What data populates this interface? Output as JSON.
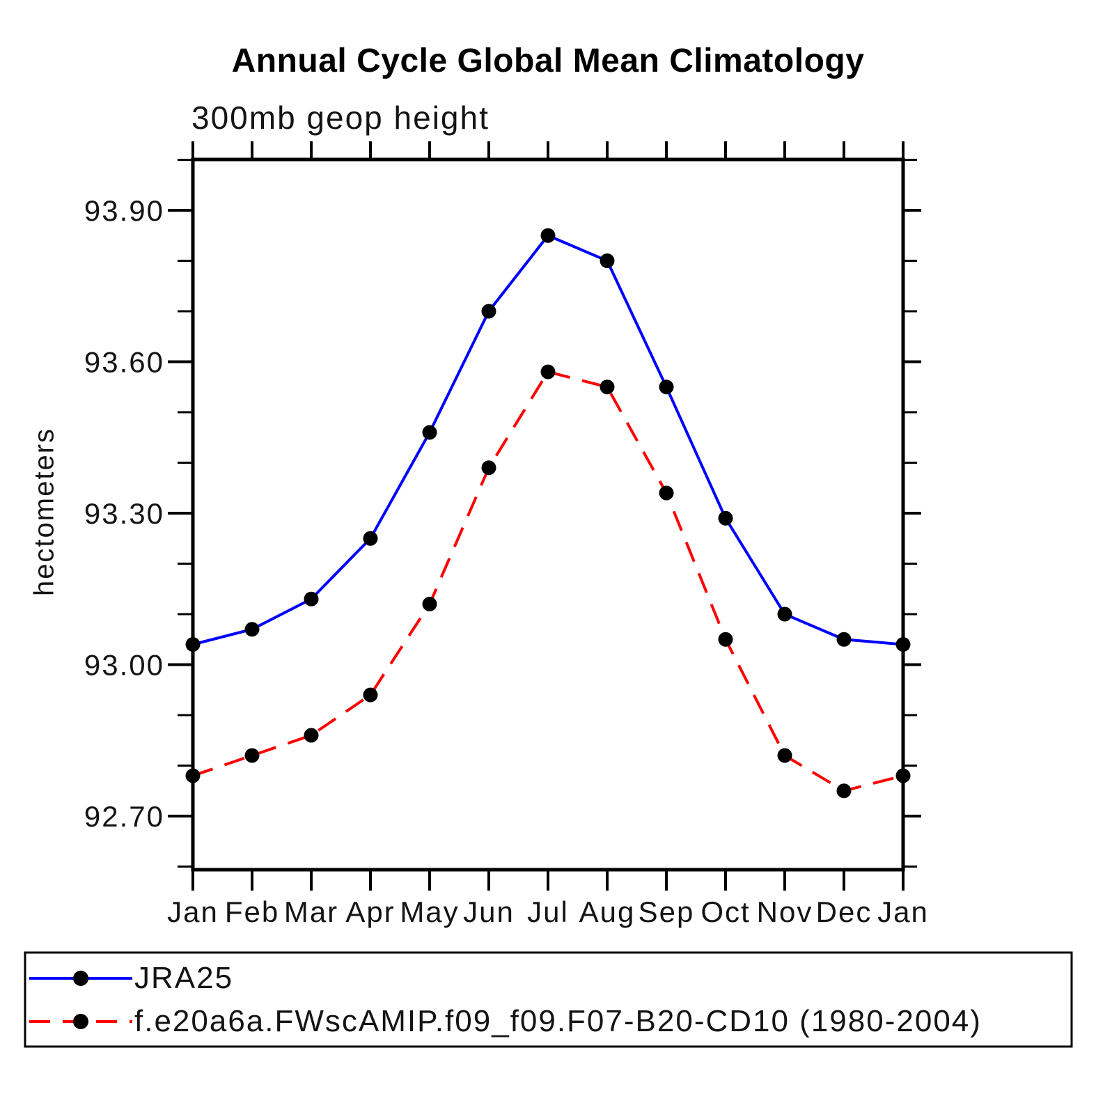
{
  "page": {
    "background": "#ffffff"
  },
  "chart_data": {
    "type": "line",
    "title": "Annual Cycle Global Mean Climatology",
    "subtitle": "300mb geop height",
    "xlabel": "",
    "ylabel": "hectometers",
    "categories": [
      "Jan",
      "Feb",
      "Mar",
      "Apr",
      "May",
      "Jun",
      "Jul",
      "Aug",
      "Sep",
      "Oct",
      "Nov",
      "Dec",
      "Jan"
    ],
    "series": [
      {
        "name": "JRA25",
        "color": "#0000ff",
        "line_style": "solid",
        "marker": "filled-circle",
        "marker_color": "#000000",
        "values": [
          93.04,
          93.07,
          93.13,
          93.25,
          93.46,
          93.7,
          93.85,
          93.8,
          93.55,
          93.29,
          93.1,
          93.05,
          93.04
        ]
      },
      {
        "name": "f.e20a6a.FWscAMIP.f09_f09.F07-B20-CD10 (1980-2004)",
        "color": "#ff0000",
        "line_style": "dashed",
        "marker": "filled-circle",
        "marker_color": "#000000",
        "values": [
          92.78,
          92.82,
          92.86,
          92.94,
          93.12,
          93.39,
          93.58,
          93.55,
          93.34,
          93.05,
          92.82,
          92.75,
          92.78
        ]
      }
    ],
    "ylim": [
      92.6,
      94.0
    ],
    "yticks_major": [
      92.7,
      93.0,
      93.3,
      93.6,
      93.9
    ],
    "ytick_minor_step": 0.1,
    "grid": false,
    "legend_position": "bottom-left-box",
    "axis_color": "#000000"
  }
}
